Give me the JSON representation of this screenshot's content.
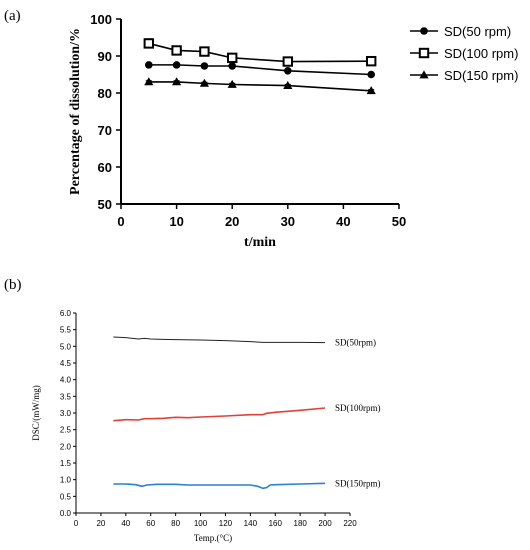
{
  "panel_a_label": "(a)",
  "panel_b_label": "(b)",
  "chart_data": [
    {
      "type": "line",
      "xlabel": "t/min",
      "ylabel": "Percentage of dissolution/%",
      "xlim": [
        0,
        50
      ],
      "ylim": [
        50,
        100
      ],
      "xticks": [
        "0",
        "10",
        "20",
        "30",
        "40",
        "50"
      ],
      "yticks": [
        "50",
        "60",
        "70",
        "80",
        "90",
        "100"
      ],
      "legend_position": "right",
      "grid": false,
      "x": [
        5,
        10,
        15,
        20,
        30,
        45
      ],
      "series": [
        {
          "name": "SD(50 rpm)",
          "marker": "circle",
          "values": [
            87.6,
            87.6,
            87.3,
            87.3,
            86.0,
            85.0
          ]
        },
        {
          "name": "SD(100 rpm)",
          "marker": "open-square",
          "values": [
            93.4,
            91.5,
            91.2,
            89.5,
            88.5,
            88.6
          ]
        },
        {
          "name": "SD(150 rpm)",
          "marker": "triangle",
          "values": [
            83.0,
            83.0,
            82.6,
            82.3,
            82.0,
            80.6
          ]
        }
      ],
      "error_bars": [
        [
          0.3,
          0.3,
          0.3,
          0.3,
          0.3,
          0.3
        ],
        [
          1.2,
          1.0,
          0.9,
          0.6,
          0.5,
          0.7
        ],
        [
          0.3,
          0.3,
          0.3,
          0.3,
          0.3,
          0.3
        ]
      ]
    },
    {
      "type": "line",
      "xlabel": "Temp.(°C)",
      "ylabel": "DSC/(mW/mg)",
      "xlim": [
        0,
        220
      ],
      "ylim": [
        0,
        6.0
      ],
      "xticks": [
        "0",
        "20",
        "40",
        "60",
        "80",
        "100",
        "120",
        "140",
        "160",
        "180",
        "200",
        "220"
      ],
      "yticks": [
        "0.0",
        "0.5",
        "1.0",
        "1.5",
        "2.0",
        "2.5",
        "3.0",
        "3.5",
        "4.0",
        "4.5",
        "5.0",
        "5.5",
        "6.0"
      ],
      "grid": false,
      "series": [
        {
          "name": "SD(50rpm)",
          "color": "#222222",
          "x": [
            30,
            40,
            50,
            55,
            60,
            70,
            80,
            100,
            120,
            140,
            150,
            160,
            180,
            200
          ],
          "values": [
            5.28,
            5.26,
            5.22,
            5.24,
            5.22,
            5.21,
            5.2,
            5.19,
            5.17,
            5.14,
            5.12,
            5.12,
            5.12,
            5.11
          ]
        },
        {
          "name": "SD(100rpm)",
          "color": "#e0403a",
          "x": [
            30,
            40,
            50,
            55,
            60,
            70,
            80,
            90,
            100,
            120,
            140,
            150,
            153,
            160,
            180,
            200
          ],
          "values": [
            2.77,
            2.8,
            2.79,
            2.83,
            2.83,
            2.84,
            2.87,
            2.86,
            2.88,
            2.91,
            2.95,
            2.95,
            2.99,
            3.02,
            3.08,
            3.15
          ]
        },
        {
          "name": "SD(150rpm)",
          "color": "#2b7fd4",
          "x": [
            30,
            40,
            48,
            53,
            57,
            65,
            80,
            90,
            100,
            120,
            140,
            146,
            150,
            153,
            156,
            160,
            180,
            200
          ],
          "values": [
            0.87,
            0.87,
            0.85,
            0.8,
            0.84,
            0.86,
            0.86,
            0.84,
            0.84,
            0.84,
            0.84,
            0.8,
            0.74,
            0.76,
            0.84,
            0.85,
            0.87,
            0.89
          ]
        }
      ]
    }
  ]
}
